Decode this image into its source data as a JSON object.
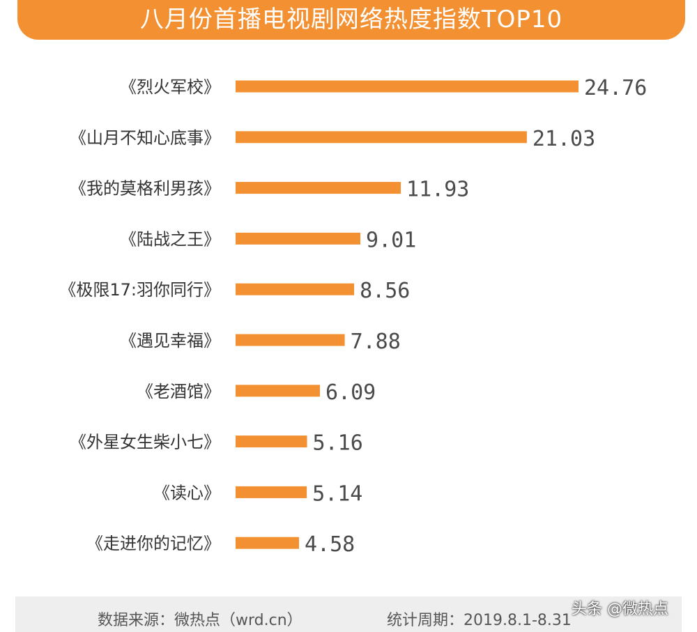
{
  "chart_data": {
    "type": "bar",
    "orientation": "horizontal",
    "title": "八月份首播电视剧网络热度指数TOP10",
    "categories": [
      "《烈火军校》",
      "《山月不知心底事》",
      "《我的莫格利男孩》",
      "《陆战之王》",
      "《极限17:羽你同行》",
      "《遇见幸福》",
      "《老酒馆》",
      "《外星女生柴小七》",
      "《读心》",
      "《走进你的记忆》"
    ],
    "values": [
      24.76,
      21.03,
      11.93,
      9.01,
      8.56,
      7.88,
      6.09,
      5.16,
      5.14,
      4.58
    ],
    "value_labels": [
      "24.76",
      "21.03",
      "11.93",
      "9.01",
      "8.56",
      "7.88",
      "6.09",
      "5.16",
      "5.14",
      "4.58"
    ],
    "bar_color": "#F39031",
    "xlabel": "",
    "ylabel": "",
    "grid": false
  },
  "footer": {
    "source": "数据来源：微热点（wrd.cn）",
    "period": "统计周期：2019.8.1-8.31"
  },
  "watermark": "头条 @微热点",
  "colors": {
    "accent": "#F39031",
    "footer_bg": "#EEEEEE"
  }
}
